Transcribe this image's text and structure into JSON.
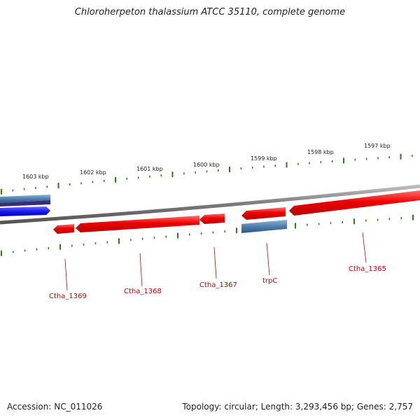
{
  "title": "Chloroherpeton thalassium ATCC 35110, complete genome",
  "accession": "Accession: NC_011026",
  "summary": "Topology: circular; Length: 3,293,456 bp; Genes: 2,757",
  "colors": {
    "backbone": "#888888",
    "tick": "#2e7d12",
    "gene_red": "#ee0000",
    "gene_blue": "#1a1aee",
    "gene_steel": "#4f7fae",
    "label": "#cc0000"
  },
  "kbp_marks": [
    {
      "label": "1603 kbp"
    },
    {
      "label": "1602 kbp"
    },
    {
      "label": "1601 kbp"
    },
    {
      "label": "1600 kbp"
    },
    {
      "label": "1599 kbp"
    },
    {
      "label": "1598 kbp"
    },
    {
      "label": "1597 kbp"
    }
  ],
  "gene_labels": [
    {
      "id": "ctha_1369",
      "text": "Ctha_1369"
    },
    {
      "id": "ctha_1368",
      "text": "Ctha_1368"
    },
    {
      "id": "ctha_1367",
      "text": "Ctha_1367"
    },
    {
      "id": "trpc",
      "text": "trpC"
    },
    {
      "id": "ctha_1365",
      "text": "Ctha_1365"
    }
  ]
}
